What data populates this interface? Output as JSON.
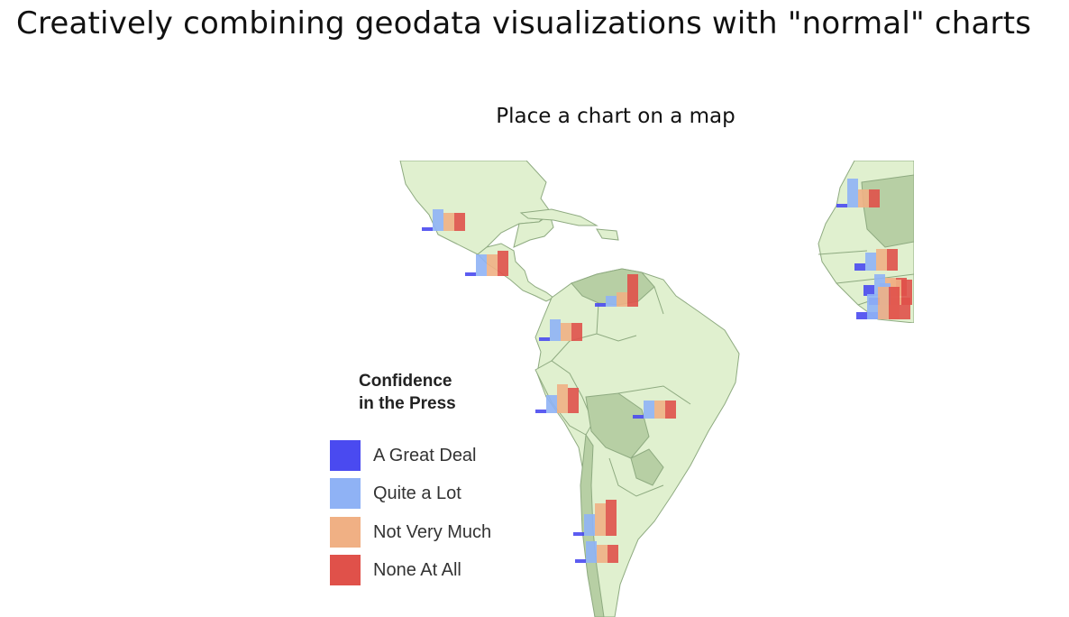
{
  "page": {
    "title": "Creatively combining geodata visualizations with \"normal\" charts",
    "subtitle": "Place a chart on a map"
  },
  "legend": {
    "title_line1": "Confidence",
    "title_line2": "in the Press",
    "items": [
      {
        "label": "A Great Deal",
        "color": "#4a4af0"
      },
      {
        "label": "Quite a Lot",
        "color": "#8fb2f5"
      },
      {
        "label": "Not Very Much",
        "color": "#f0b084"
      },
      {
        "label": "None At All",
        "color": "#e0514a"
      }
    ]
  },
  "colors": {
    "land": "#e0f0cf",
    "land_shaded": "#b7cfa4",
    "border": "#8eaa80"
  },
  "chart_data": {
    "type": "bar",
    "title": "",
    "categories": [
      "A Great Deal",
      "Quite a Lot",
      "Not Very Much",
      "None At All"
    ],
    "series": [
      {
        "values": [
          5,
          30,
          25,
          25
        ]
      },
      {
        "values": [
          5,
          30,
          30,
          35
        ]
      },
      {
        "values": [
          5,
          15,
          20,
          45
        ]
      },
      {
        "values": [
          5,
          30,
          25,
          25
        ]
      },
      {
        "values": [
          5,
          25,
          40,
          35
        ]
      },
      {
        "values": [
          5,
          25,
          25,
          25
        ]
      },
      {
        "values": [
          5,
          30,
          25,
          25
        ]
      },
      {
        "values": [
          5,
          30,
          45,
          50
        ]
      },
      {
        "values": [
          5,
          40,
          25,
          25
        ]
      },
      {
        "values": [
          10,
          25,
          30,
          30
        ]
      },
      {
        "values": [
          15,
          30,
          25,
          25
        ]
      },
      {
        "values": [
          10,
          35,
          30,
          30
        ]
      },
      {
        "values": [
          10,
          30,
          35,
          35
        ]
      },
      {
        "values": [
          10,
          35,
          45,
          45
        ]
      }
    ]
  }
}
